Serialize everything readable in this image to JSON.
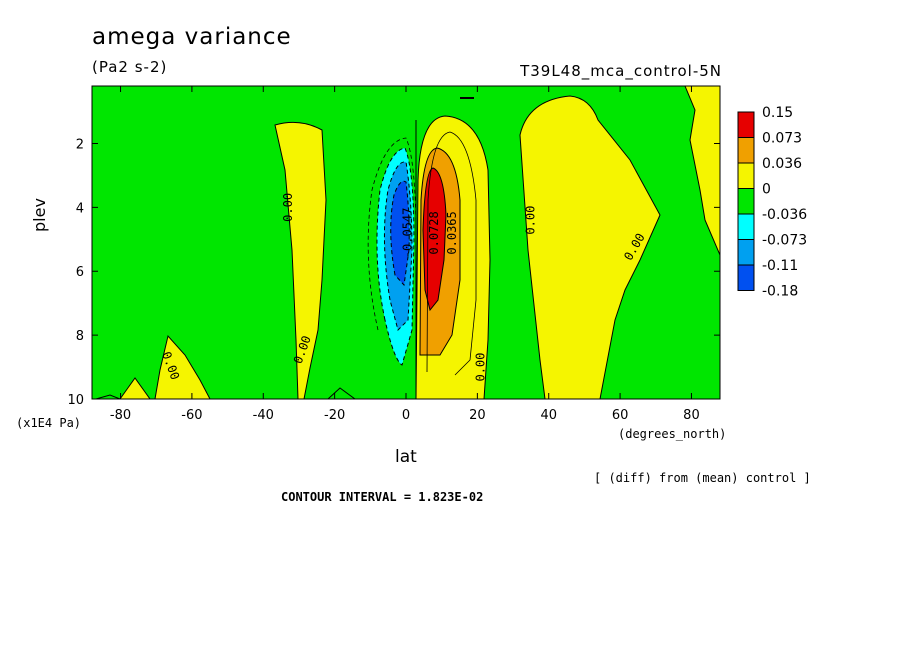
{
  "chart_data": {
    "type": "heatmap",
    "title": "amega variance",
    "units_label": "(Pa2 s-2)",
    "experiment": "T39L48_mca_control-5N",
    "xlabel": "lat",
    "x_unit": "(degrees_north)",
    "ylabel": "plev",
    "y_unit": "(x1E4 Pa)",
    "note": "[ (diff) from (mean) control ]",
    "contour_interval": "CONTOUR INTERVAL = 1.823E-02",
    "xlim": [
      -88,
      88
    ],
    "ylim": [
      10,
      0.2
    ],
    "x_ticks": [
      "-80",
      "-60",
      "-40",
      "-20",
      "0",
      "20",
      "40",
      "60",
      "80"
    ],
    "y_ticks": [
      "2",
      "4",
      "6",
      "8",
      "10"
    ],
    "legend": {
      "labels": [
        "0.15",
        "0.073",
        "0.036",
        "0",
        "-0.036",
        "-0.073",
        "-0.11",
        "-0.18"
      ],
      "colors": [
        "#e60000",
        "#f0a000",
        "#f5f500",
        "#00e600",
        "#00ffff",
        "#00a0f0",
        "#0050f0"
      ]
    },
    "contour_labels": [
      {
        "text": "0.00",
        "x": -32,
        "y": 4.0,
        "rot": -90
      },
      {
        "text": "0.00",
        "x": -28,
        "y": 8.5,
        "rot": -70
      },
      {
        "text": "0.00",
        "x": -67,
        "y": 9.0,
        "rot": 70
      },
      {
        "text": "0.00",
        "x": 22,
        "y": 9.0,
        "rot": -90
      },
      {
        "text": "0.00",
        "x": 36,
        "y": 4.4,
        "rot": -90
      },
      {
        "text": "0.00",
        "x": 65,
        "y": 5.3,
        "rot": -60
      },
      {
        "text": "0.0728",
        "x": 9,
        "y": 4.8,
        "rot": -90
      },
      {
        "text": "0.0365",
        "x": 14,
        "y": 4.8,
        "rot": -90
      },
      {
        "text": "-0.0547",
        "x": 1.5,
        "y": 4.8,
        "rot": -90
      }
    ],
    "features": [
      {
        "name": "positive-core",
        "lat": 7,
        "plev": 5.0,
        "value": 0.15
      },
      {
        "name": "negative-core",
        "lat": -2,
        "plev": 4.5,
        "value": -0.11
      }
    ]
  }
}
